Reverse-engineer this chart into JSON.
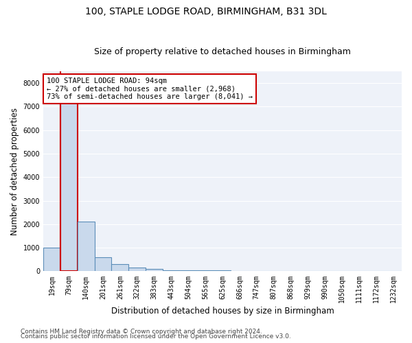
{
  "title": "100, STAPLE LODGE ROAD, BIRMINGHAM, B31 3DL",
  "subtitle": "Size of property relative to detached houses in Birmingham",
  "xlabel": "Distribution of detached houses by size in Birmingham",
  "ylabel": "Number of detached properties",
  "bins": [
    "19sqm",
    "79sqm",
    "140sqm",
    "201sqm",
    "261sqm",
    "322sqm",
    "383sqm",
    "443sqm",
    "504sqm",
    "565sqm",
    "625sqm",
    "686sqm",
    "747sqm",
    "807sqm",
    "868sqm",
    "929sqm",
    "990sqm",
    "1050sqm",
    "1111sqm",
    "1172sqm",
    "1232sqm"
  ],
  "values": [
    1000,
    7600,
    2100,
    600,
    300,
    150,
    100,
    50,
    50,
    50,
    50,
    0,
    0,
    0,
    0,
    0,
    0,
    0,
    0,
    0,
    0
  ],
  "bar_color": "#c9d9ec",
  "bar_edge_color": "#5b8db8",
  "highlight_bar_index": 1,
  "highlight_edge_color": "#cc0000",
  "vline_color": "#cc0000",
  "annotation_text": "100 STAPLE LODGE ROAD: 94sqm\n← 27% of detached houses are smaller (2,968)\n73% of semi-detached houses are larger (8,041) →",
  "annotation_box_color": "#cc0000",
  "footnote1": "Contains HM Land Registry data © Crown copyright and database right 2024.",
  "footnote2": "Contains public sector information licensed under the Open Government Licence v3.0.",
  "ylim": [
    0,
    8500
  ],
  "yticks": [
    0,
    1000,
    2000,
    3000,
    4000,
    5000,
    6000,
    7000,
    8000
  ],
  "bg_color": "#eef2f9",
  "grid_color": "#ffffff",
  "title_fontsize": 10,
  "subtitle_fontsize": 9,
  "axis_label_fontsize": 8.5,
  "tick_fontsize": 7,
  "annotation_fontsize": 7.5,
  "footnote_fontsize": 6.5
}
